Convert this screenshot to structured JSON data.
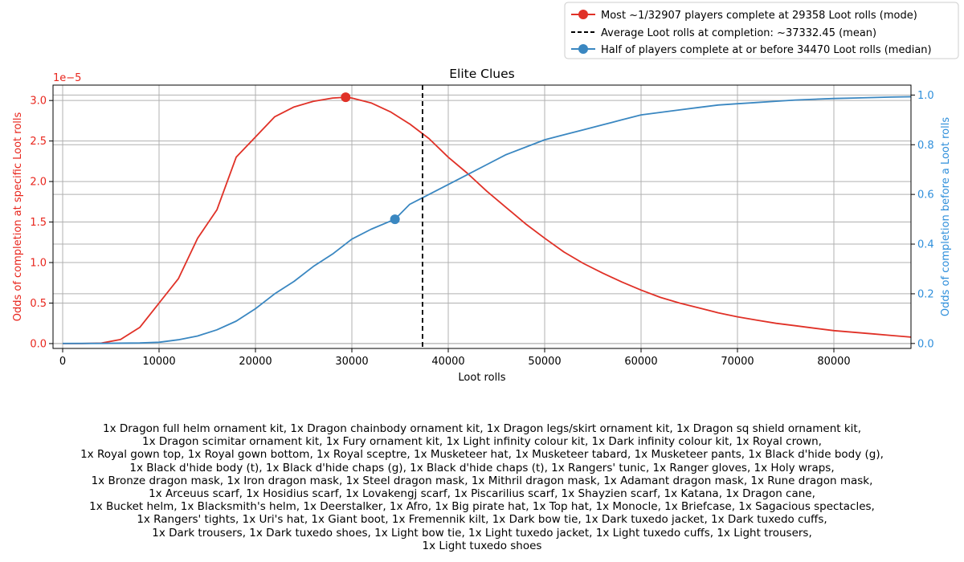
{
  "chart_data": {
    "type": "line",
    "title": "Elite Clues",
    "xlabel": "Loot rolls",
    "ylabel_left": "Odds of completion at specific Loot rolls",
    "ylabel_right": "Odds of completion before a Loot rolls",
    "left_axis_multiplier": "1e−5",
    "xlim": [
      -1000,
      88000
    ],
    "ylim_left": [
      -0.06,
      3.19
    ],
    "ylim_right": [
      -0.02,
      1.04
    ],
    "x_ticks": [
      0,
      10000,
      20000,
      30000,
      40000,
      50000,
      60000,
      70000,
      80000
    ],
    "y_ticks_left": [
      "0.0",
      "0.5",
      "1.0",
      "1.5",
      "2.0",
      "2.5",
      "3.0"
    ],
    "y_ticks_right": [
      "0.0",
      "0.2",
      "0.4",
      "0.6",
      "0.8",
      "1.0"
    ],
    "grid": true,
    "legend_placement": "top-right (above plot)",
    "colors": {
      "pmf": "#e03127",
      "cdf": "#3a87c1",
      "right_axis": "#2f8fdb",
      "left_axis": "#e8261d",
      "mean_line": "#000000",
      "grid": "#b0b0b0"
    },
    "series": [
      {
        "name": "Most ~1/32907 players complete at 29358 Loot rolls (mode)",
        "axis": "left",
        "x": [
          0,
          2000,
          4000,
          6000,
          8000,
          10000,
          12000,
          14000,
          16000,
          18000,
          20000,
          22000,
          24000,
          26000,
          28000,
          29358,
          30000,
          32000,
          34000,
          36000,
          38000,
          40000,
          42000,
          44000,
          46000,
          48000,
          50000,
          52000,
          54000,
          56000,
          58000,
          60000,
          62000,
          64000,
          66000,
          68000,
          70000,
          72000,
          74000,
          76000,
          78000,
          80000,
          82000,
          84000,
          86000,
          88000
        ],
        "y": [
          0,
          0,
          0.005,
          0.05,
          0.2,
          0.5,
          0.8,
          1.3,
          1.65,
          2.3,
          2.55,
          2.8,
          2.92,
          2.99,
          3.03,
          3.04,
          3.03,
          2.97,
          2.86,
          2.71,
          2.53,
          2.3,
          2.1,
          1.88,
          1.68,
          1.48,
          1.3,
          1.13,
          0.99,
          0.87,
          0.76,
          0.66,
          0.57,
          0.5,
          0.44,
          0.38,
          0.33,
          0.29,
          0.25,
          0.22,
          0.19,
          0.16,
          0.14,
          0.12,
          0.1,
          0.08
        ],
        "marker": {
          "x": 29358,
          "y": 3.04
        }
      },
      {
        "name": "Half of players complete at or before 34470 Loot rolls (median)",
        "axis": "right",
        "x": [
          0,
          4000,
          8000,
          10000,
          12000,
          14000,
          16000,
          18000,
          20000,
          22000,
          24000,
          26000,
          28000,
          30000,
          32000,
          34470,
          36000,
          38000,
          40000,
          42000,
          44000,
          46000,
          48000,
          50000,
          52000,
          54000,
          56000,
          58000,
          60000,
          62000,
          64000,
          66000,
          68000,
          70000,
          72000,
          74000,
          76000,
          78000,
          80000,
          82000,
          84000,
          86000,
          88000
        ],
        "y": [
          0,
          0.0002,
          0.002,
          0.005,
          0.015,
          0.03,
          0.055,
          0.09,
          0.14,
          0.2,
          0.25,
          0.31,
          0.36,
          0.42,
          0.46,
          0.5,
          0.56,
          0.6,
          0.64,
          0.68,
          0.72,
          0.76,
          0.79,
          0.82,
          0.84,
          0.86,
          0.88,
          0.9,
          0.92,
          0.93,
          0.94,
          0.95,
          0.96,
          0.965,
          0.97,
          0.975,
          0.98,
          0.983,
          0.986,
          0.988,
          0.99,
          0.992,
          0.993
        ],
        "marker": {
          "x": 34470,
          "y": 0.5
        }
      }
    ],
    "mean_line": {
      "name": "Average Loot rolls at completion: ~37332.45 (mean)",
      "x": 37332.45,
      "style": "dashed"
    }
  },
  "footer_lines": [
    "1x Dragon full helm ornament kit, 1x Dragon chainbody ornament kit, 1x Dragon legs/skirt ornament kit, 1x Dragon sq shield ornament kit,",
    "1x Dragon scimitar ornament kit, 1x Fury ornament kit, 1x Light infinity colour kit, 1x Dark infinity colour kit, 1x Royal crown,",
    "1x Royal gown top, 1x Royal gown bottom, 1x Royal sceptre, 1x Musketeer hat, 1x Musketeer tabard, 1x Musketeer pants, 1x Black d'hide body (g),",
    "1x Black d'hide body (t), 1x Black d'hide chaps (g), 1x Black d'hide chaps (t), 1x Rangers' tunic, 1x Ranger gloves, 1x Holy wraps,",
    "1x Bronze dragon mask, 1x Iron dragon mask, 1x Steel dragon mask, 1x Mithril dragon mask, 1x Adamant dragon mask, 1x Rune dragon mask,",
    "1x Arceuus scarf, 1x Hosidius scarf, 1x Lovakengj scarf, 1x Piscarilius scarf, 1x Shayzien scarf, 1x Katana, 1x Dragon cane,",
    "1x Bucket helm, 1x Blacksmith's helm, 1x Deerstalker, 1x Afro, 1x Big pirate hat, 1x Top hat, 1x Monocle, 1x Briefcase, 1x Sagacious spectacles,",
    "1x Rangers' tights, 1x Uri's hat, 1x Giant boot, 1x Fremennik kilt, 1x Dark bow tie, 1x Dark tuxedo jacket, 1x Dark tuxedo cuffs,",
    "1x Dark trousers, 1x Dark tuxedo shoes, 1x Light bow tie, 1x Light tuxedo jacket, 1x Light tuxedo cuffs, 1x Light trousers,",
    "1x Light tuxedo shoes"
  ]
}
